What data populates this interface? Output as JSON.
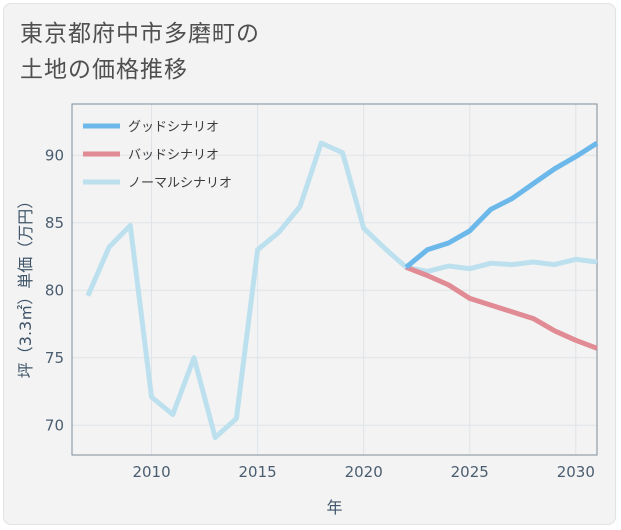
{
  "title_lines": [
    "東京都府中市多磨町の",
    "土地の価格推移"
  ],
  "chart_data": {
    "type": "line",
    "xlabel": "年",
    "ylabel": "坪（3.3㎡）単価（万円）",
    "xlim": [
      2006.25,
      2031
    ],
    "ylim": [
      67.8,
      93.8
    ],
    "xticks": [
      2010,
      2015,
      2020,
      2025,
      2030
    ],
    "yticks": [
      70,
      75,
      80,
      85,
      90
    ],
    "grid": true,
    "legend_position": "top-left",
    "series": [
      {
        "name": "グッドシナリオ",
        "color": "#6cb8ea",
        "x": [
          2022,
          2023,
          2024,
          2025,
          2026,
          2027,
          2028,
          2029,
          2030,
          2031
        ],
        "y": [
          81.7,
          83.0,
          83.5,
          84.4,
          86.0,
          86.8,
          87.9,
          89.0,
          89.9,
          90.9
        ]
      },
      {
        "name": "バッドシナリオ",
        "color": "#e18b94",
        "x": [
          2022,
          2023,
          2024,
          2025,
          2026,
          2027,
          2028,
          2029,
          2030,
          2031
        ],
        "y": [
          81.7,
          81.1,
          80.4,
          79.4,
          78.9,
          78.4,
          77.9,
          77.0,
          76.3,
          75.7
        ]
      },
      {
        "name": "ノーマルシナリオ",
        "color": "#bde0ef",
        "x": [
          2007,
          2008,
          2009,
          2010,
          2011,
          2012,
          2013,
          2014,
          2015,
          2016,
          2017,
          2018,
          2019,
          2020,
          2021,
          2022,
          2023,
          2024,
          2025,
          2026,
          2027,
          2028,
          2029,
          2030,
          2031
        ],
        "y": [
          79.6,
          83.2,
          84.8,
          72.1,
          70.8,
          75.0,
          69.1,
          70.5,
          83.0,
          84.3,
          86.2,
          90.9,
          90.2,
          84.6,
          83.1,
          81.7,
          81.4,
          81.8,
          81.6,
          82.0,
          81.9,
          82.1,
          81.9,
          82.3,
          82.1
        ]
      }
    ]
  }
}
